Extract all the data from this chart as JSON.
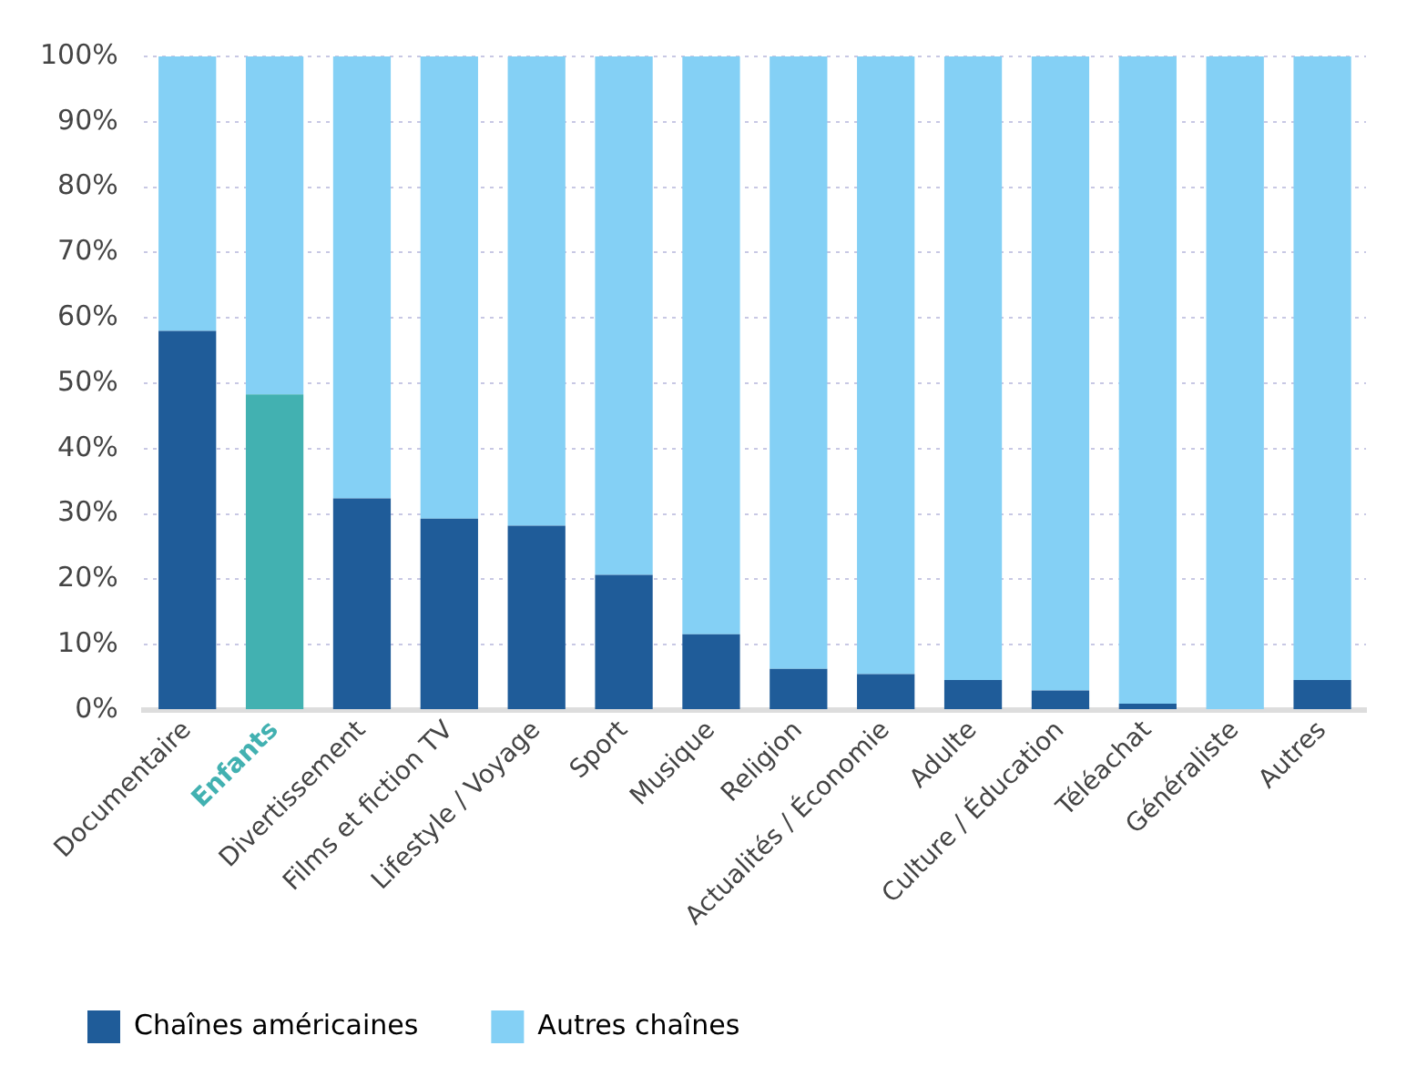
{
  "chart_data": {
    "type": "bar",
    "stacked": true,
    "categories": [
      "Documentaire",
      "Enfants",
      "Divertissement",
      "Films et fiction TV",
      "Lifestyle / Voyage",
      "Sport",
      "Musique",
      "Religion",
      "Actualités / Économie",
      "Adulte",
      "Culture / Éducation",
      "Téléachat",
      "Généraliste",
      "Autres"
    ],
    "series": [
      {
        "name": "Chaînes américaines",
        "color": "#1f5c99",
        "colors": [
          "#1f5c99",
          "#42b1b1",
          "#1f5c99",
          "#1f5c99",
          "#1f5c99",
          "#1f5c99",
          "#1f5c99",
          "#1f5c99",
          "#1f5c99",
          "#1f5c99",
          "#1f5c99",
          "#1f5c99",
          "#1f5c99",
          "#1f5c99"
        ],
        "values": [
          58,
          48.3,
          32.4,
          29.3,
          28.2,
          20.7,
          11.6,
          6.3,
          5.5,
          4.6,
          3,
          1,
          0,
          4.6
        ]
      },
      {
        "name": "Autres chaînes",
        "color": "#84d0f5",
        "values": [
          42,
          51.7,
          67.6,
          70.7,
          71.8,
          79.3,
          88.4,
          93.7,
          94.5,
          95.4,
          97,
          99,
          100,
          95.4
        ]
      }
    ],
    "ylim": [
      0,
      100
    ],
    "yticks": [
      {
        "value": 0,
        "label": "0%"
      },
      {
        "value": 10,
        "label": "10%"
      },
      {
        "value": 20,
        "label": "20%"
      },
      {
        "value": 30,
        "label": "30%"
      },
      {
        "value": 40,
        "label": "40%"
      },
      {
        "value": 50,
        "label": "50%"
      },
      {
        "value": 60,
        "label": "60%"
      },
      {
        "value": 70,
        "label": "70%"
      },
      {
        "value": 80,
        "label": "80%"
      },
      {
        "value": 90,
        "label": "90%"
      },
      {
        "value": 100,
        "label": "100%"
      }
    ],
    "grid": "y",
    "legend": "bottom"
  }
}
